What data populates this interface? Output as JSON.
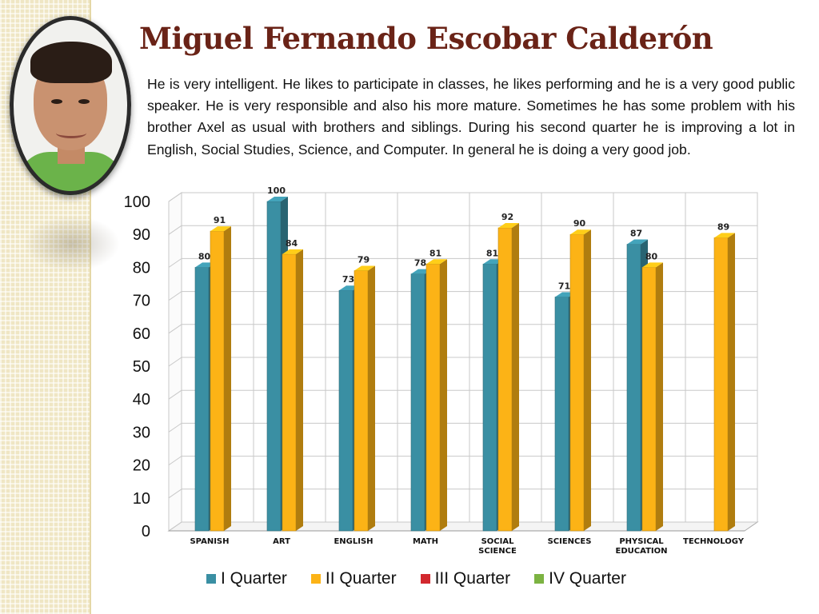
{
  "slide": {
    "title": "Miguel Fernando Escobar Calderón",
    "description": "He is very intelligent. He likes to participate in classes, he likes performing and he is a very good public speaker.  He is very responsible and also his more mature.  Sometimes he has some problem with his brother Axel as usual with brothers and siblings. During his second quarter he is improving a lot in English, Social Studies, Science, and Computer. In general he is doing a very good job."
  },
  "chart_data": {
    "type": "bar",
    "categories": [
      "SPANISH",
      "ART",
      "ENGLISH",
      "MATH",
      "SOCIAL SCIENCE",
      "SCIENCES",
      "PHYSICAL EDUCATION",
      "TECHNOLOGY"
    ],
    "series": [
      {
        "name": "I Quarter",
        "color": "#3a8fa3",
        "values": [
          80,
          100,
          73,
          78,
          81,
          71,
          87,
          null
        ]
      },
      {
        "name": "II Quarter",
        "color": "#fcb316",
        "values": [
          91,
          84,
          79,
          81,
          92,
          90,
          80,
          89
        ]
      },
      {
        "name": "III Quarter",
        "color": "#d2282e",
        "values": [
          null,
          null,
          null,
          null,
          null,
          null,
          null,
          null
        ]
      },
      {
        "name": "IV Quarter",
        "color": "#7cb342",
        "values": [
          null,
          null,
          null,
          null,
          null,
          null,
          null,
          null
        ]
      }
    ],
    "yticks": [
      0,
      10,
      20,
      30,
      40,
      50,
      60,
      70,
      80,
      90,
      100
    ],
    "ylim": [
      0,
      100
    ],
    "grid": true,
    "legend": "bottom",
    "style": "3d-columns"
  }
}
